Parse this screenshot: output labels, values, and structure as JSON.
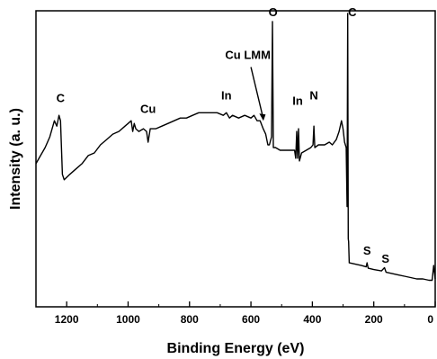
{
  "chart_data": {
    "type": "line",
    "title": "",
    "xlabel": "Binding Energy (eV)",
    "ylabel": "Intensity (a. u.)",
    "xlim": [
      1300,
      0
    ],
    "ylim": [
      0,
      100
    ],
    "x_reversed": true,
    "x_ticks": [
      "1200",
      "1000",
      "800",
      "600",
      "400",
      "200",
      "0"
    ],
    "grid": false,
    "y_tick_labels": false,
    "series": [
      {
        "points": [
          [
            1300,
            44
          ],
          [
            1285,
            47
          ],
          [
            1270,
            50
          ],
          [
            1255,
            54
          ],
          [
            1240,
            60
          ],
          [
            1232,
            58
          ],
          [
            1225,
            62
          ],
          [
            1220,
            60
          ],
          [
            1214,
            40
          ],
          [
            1208,
            38
          ],
          [
            1190,
            40
          ],
          [
            1170,
            42
          ],
          [
            1150,
            44
          ],
          [
            1130,
            47
          ],
          [
            1110,
            48
          ],
          [
            1090,
            51
          ],
          [
            1070,
            53
          ],
          [
            1050,
            55
          ],
          [
            1030,
            56
          ],
          [
            1010,
            58
          ],
          [
            1000,
            59
          ],
          [
            990,
            60
          ],
          [
            985,
            56
          ],
          [
            980,
            59
          ],
          [
            975,
            57
          ],
          [
            965,
            56
          ],
          [
            950,
            57
          ],
          [
            940,
            56
          ],
          [
            935,
            52
          ],
          [
            928,
            57
          ],
          [
            910,
            57
          ],
          [
            890,
            58
          ],
          [
            870,
            59
          ],
          [
            850,
            60
          ],
          [
            830,
            61
          ],
          [
            810,
            61
          ],
          [
            790,
            62
          ],
          [
            770,
            63
          ],
          [
            750,
            63
          ],
          [
            730,
            63
          ],
          [
            710,
            63
          ],
          [
            690,
            62
          ],
          [
            680,
            63
          ],
          [
            670,
            61
          ],
          [
            660,
            62
          ],
          [
            640,
            61
          ],
          [
            620,
            62
          ],
          [
            600,
            61
          ],
          [
            590,
            62
          ],
          [
            580,
            60
          ],
          [
            570,
            60
          ],
          [
            560,
            57
          ],
          [
            552,
            55
          ],
          [
            545,
            51
          ],
          [
            540,
            51
          ],
          [
            533,
            54
          ],
          [
            530,
            97
          ],
          [
            527,
            50
          ],
          [
            520,
            50
          ],
          [
            505,
            49
          ],
          [
            490,
            49
          ],
          [
            470,
            49
          ],
          [
            458,
            49
          ],
          [
            454,
            46
          ],
          [
            451,
            56
          ],
          [
            448,
            46
          ],
          [
            445,
            57
          ],
          [
            442,
            45
          ],
          [
            435,
            48
          ],
          [
            420,
            49
          ],
          [
            405,
            50
          ],
          [
            398,
            51
          ],
          [
            395,
            58
          ],
          [
            392,
            50
          ],
          [
            380,
            51
          ],
          [
            360,
            51
          ],
          [
            345,
            52
          ],
          [
            335,
            51
          ],
          [
            322,
            53
          ],
          [
            313,
            56
          ],
          [
            305,
            60
          ],
          [
            300,
            57
          ],
          [
            295,
            52
          ],
          [
            290,
            50
          ],
          [
            287,
            28
          ],
          [
            285,
            100
          ],
          [
            283,
            16
          ],
          [
            282,
            15
          ],
          [
            280,
            7
          ],
          [
            260,
            6.5
          ],
          [
            240,
            6
          ],
          [
            225,
            5.5
          ],
          [
            222,
            7
          ],
          [
            218,
            5
          ],
          [
            200,
            4.5
          ],
          [
            175,
            4
          ],
          [
            165,
            5.2
          ],
          [
            160,
            3.5
          ],
          [
            140,
            3
          ],
          [
            120,
            2.5
          ],
          [
            100,
            2
          ],
          [
            80,
            1.5
          ],
          [
            60,
            1
          ],
          [
            40,
            1
          ],
          [
            20,
            0.5
          ],
          [
            10,
            0.5
          ],
          [
            5,
            6
          ],
          [
            0,
            1
          ]
        ]
      }
    ],
    "annotations": [
      {
        "text": "C",
        "x": 1220,
        "y": 67
      },
      {
        "text": "Cu",
        "x": 935,
        "y": 63
      },
      {
        "text": "In",
        "x": 680,
        "y": 68
      },
      {
        "text": "Cu LMM",
        "x": 610,
        "y": 83
      },
      {
        "text": "O",
        "x": 528,
        "y": 99
      },
      {
        "text": "In",
        "x": 448,
        "y": 66
      },
      {
        "text": "N",
        "x": 395,
        "y": 68
      },
      {
        "text": "C",
        "x": 270,
        "y": 99
      },
      {
        "text": "S",
        "x": 222,
        "y": 10
      },
      {
        "text": "S",
        "x": 162,
        "y": 7
      }
    ]
  }
}
